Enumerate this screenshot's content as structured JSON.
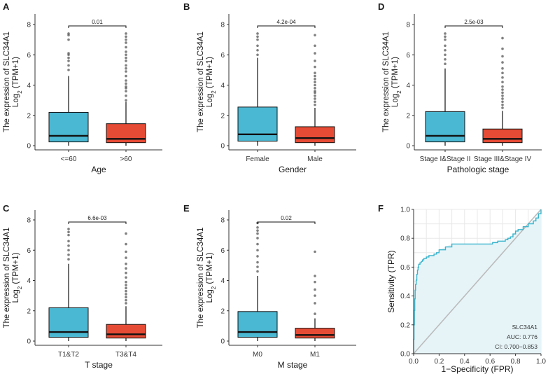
{
  "colors": {
    "group1": "#4BB8D3",
    "group2": "#E64B35",
    "roc": "#3AB4CC",
    "roc_fill": "#E6F4F8",
    "diag": "#BBBBBB",
    "axis": "#333333",
    "grid": "#E8E8E8"
  },
  "chart_data": [
    {
      "type": "box",
      "panel": "A",
      "xlabel": "Age",
      "ylabel_line1": "The expression of SLC34A1",
      "ylabel_line2": "Log2 (TPM+1)",
      "ylim": [
        0,
        8
      ],
      "yticks": [
        "0",
        "2",
        "4",
        "6",
        "8"
      ],
      "pvalue": "0.01",
      "categories": [
        "<=60",
        ">60"
      ],
      "boxes": [
        {
          "name": "<=60",
          "min": 0,
          "q1": 0.25,
          "median": 0.65,
          "q3": 2.2,
          "whisker_high": 4.6,
          "outliers": [
            5.0,
            5.3,
            5.6,
            5.8,
            6.0,
            6.1,
            7.0,
            7.3,
            7.4
          ]
        },
        {
          "name": ">60",
          "min": 0,
          "q1": 0.2,
          "median": 0.45,
          "q3": 1.45,
          "whisker_high": 2.9,
          "outliers": [
            3.0,
            3.3,
            3.6,
            3.8,
            3.9,
            4.1,
            4.3,
            4.6,
            4.9,
            5.1,
            5.3,
            5.6,
            5.8,
            6.0,
            6.2,
            6.5,
            6.8,
            7.0,
            7.2,
            7.4
          ]
        }
      ]
    },
    {
      "type": "box",
      "panel": "B",
      "xlabel": "Gender",
      "ylabel_line1": "The expression of SLC34A1",
      "ylabel_line2": "Log2 (TPM+1)",
      "ylim": [
        0,
        8
      ],
      "yticks": [
        "0",
        "2",
        "4",
        "6",
        "8"
      ],
      "pvalue": "4.2e-04",
      "categories": [
        "Female",
        "Male"
      ],
      "boxes": [
        {
          "name": "Female",
          "min": 0,
          "q1": 0.3,
          "median": 0.75,
          "q3": 2.55,
          "whisker_high": 5.8,
          "outliers": [
            6.0,
            6.3,
            6.6,
            7.0,
            7.2,
            7.4
          ]
        },
        {
          "name": "Male",
          "min": 0,
          "q1": 0.2,
          "median": 0.5,
          "q3": 1.25,
          "whisker_high": 2.5,
          "outliers": [
            2.7,
            2.9,
            3.1,
            3.3,
            3.5,
            3.6,
            3.8,
            4.0,
            4.2,
            4.4,
            4.6,
            4.8,
            5.2,
            5.6,
            6.1,
            6.6,
            7.3
          ]
        }
      ]
    },
    {
      "type": "box",
      "panel": "D",
      "xlabel": "Pathologic stage",
      "ylabel_line1": "The expression of SLC34A1",
      "ylabel_line2": "Log2 (TPM+1)",
      "ylim": [
        0,
        8
      ],
      "yticks": [
        "0",
        "2",
        "4",
        "6",
        "8"
      ],
      "pvalue": "2.5e-03",
      "categories": [
        "Stage I&Stage II",
        "Stage III&Stage IV"
      ],
      "boxes": [
        {
          "name": "Stage I&Stage II",
          "min": 0,
          "q1": 0.25,
          "median": 0.65,
          "q3": 2.25,
          "whisker_high": 5.1,
          "outliers": [
            5.4,
            5.7,
            6.0,
            6.3,
            6.6,
            7.0,
            7.2,
            7.4
          ]
        },
        {
          "name": "Stage III&Stage IV",
          "min": 0,
          "q1": 0.2,
          "median": 0.45,
          "q3": 1.1,
          "whisker_high": 2.3,
          "outliers": [
            2.5,
            2.7,
            2.9,
            3.1,
            3.3,
            3.5,
            3.7,
            3.9,
            4.2,
            4.5,
            4.8,
            5.1,
            5.5,
            5.9,
            6.4,
            7.1
          ]
        }
      ]
    },
    {
      "type": "box",
      "panel": "C",
      "xlabel": "T stage",
      "ylabel_line1": "The expression of SLC34A1",
      "ylabel_line2": "Log2 (TPM+1)",
      "ylim": [
        0,
        8
      ],
      "yticks": [
        "0",
        "2",
        "4",
        "6",
        "8"
      ],
      "pvalue": "6.6e-03",
      "categories": [
        "T1&T2",
        "T3&T4"
      ],
      "boxes": [
        {
          "name": "T1&T2",
          "min": 0,
          "q1": 0.25,
          "median": 0.6,
          "q3": 2.2,
          "whisker_high": 5.1,
          "outliers": [
            5.4,
            5.7,
            6.0,
            6.3,
            6.6,
            7.0,
            7.2,
            7.4
          ]
        },
        {
          "name": "T3&T4",
          "min": 0,
          "q1": 0.2,
          "median": 0.45,
          "q3": 1.1,
          "whisker_high": 2.3,
          "outliers": [
            2.5,
            2.7,
            2.9,
            3.1,
            3.3,
            3.5,
            3.7,
            3.9,
            4.2,
            4.5,
            4.8,
            5.1,
            5.5,
            5.9,
            6.4,
            7.1
          ]
        }
      ]
    },
    {
      "type": "box",
      "panel": "E",
      "xlabel": "M stage",
      "ylabel_line1": "The expression of SLC34A1",
      "ylabel_line2": "Log2 (TPM+1)",
      "ylim": [
        0,
        8
      ],
      "yticks": [
        "0",
        "2",
        "4",
        "6",
        "8"
      ],
      "pvalue": "0.02",
      "categories": [
        "M0",
        "M1"
      ],
      "boxes": [
        {
          "name": "M0",
          "min": 0,
          "q1": 0.25,
          "median": 0.6,
          "q3": 1.95,
          "whisker_high": 4.3,
          "outliers": [
            4.6,
            4.9,
            5.2,
            5.6,
            6.0,
            6.4,
            6.8,
            7.1,
            7.3,
            7.5,
            7.8
          ]
        },
        {
          "name": "M1",
          "min": 0,
          "q1": 0.2,
          "median": 0.4,
          "q3": 0.85,
          "whisker_high": 1.5,
          "outliers": [
            1.8,
            2.5,
            3.0,
            3.4,
            3.9,
            4.3,
            5.9
          ]
        }
      ]
    },
    {
      "type": "line",
      "panel": "F",
      "xlabel": "1−Specificity (FPR)",
      "ylabel": "Sensitivity (TPR)",
      "xlim": [
        0,
        1
      ],
      "ylim": [
        0,
        1
      ],
      "xticks": [
        "0.0",
        "0.2",
        "0.4",
        "0.6",
        "0.8",
        "1.0"
      ],
      "yticks": [
        "0.0",
        "0.2",
        "0.4",
        "0.6",
        "0.8",
        "1.0"
      ],
      "grid": true,
      "legend": {
        "gene": "SLC34A1",
        "auc": "AUC: 0.776",
        "ci": "CI: 0.700−0.853"
      },
      "roc": {
        "fpr": [
          0,
          0,
          0.003,
          0.006,
          0.009,
          0.012,
          0.015,
          0.02,
          0.025,
          0.03,
          0.035,
          0.04,
          0.05,
          0.06,
          0.07,
          0.08,
          0.1,
          0.12,
          0.14,
          0.16,
          0.18,
          0.2,
          0.25,
          0.3,
          0.35,
          0.4,
          0.5,
          0.6,
          0.62,
          0.66,
          0.7,
          0.72,
          0.74,
          0.76,
          0.78,
          0.8,
          0.82,
          0.86,
          0.9,
          0.94,
          0.96,
          0.98,
          1
        ],
        "tpr": [
          0,
          0.1,
          0.2,
          0.3,
          0.38,
          0.44,
          0.48,
          0.51,
          0.55,
          0.58,
          0.6,
          0.62,
          0.63,
          0.64,
          0.65,
          0.66,
          0.67,
          0.68,
          0.68,
          0.69,
          0.7,
          0.72,
          0.74,
          0.76,
          0.76,
          0.76,
          0.76,
          0.76,
          0.77,
          0.78,
          0.78,
          0.79,
          0.8,
          0.81,
          0.83,
          0.85,
          0.86,
          0.88,
          0.9,
          0.92,
          0.94,
          0.97,
          1
        ]
      }
    }
  ]
}
